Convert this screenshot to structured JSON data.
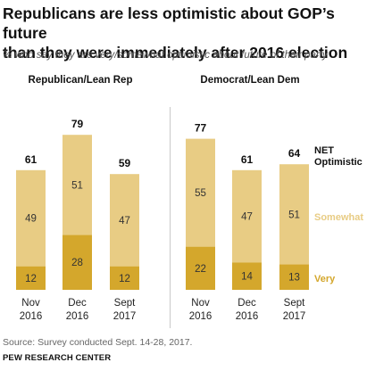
{
  "title_line1": "Republicans are less optimistic about GOP’s future",
  "title_line2": "than they were immediately after 2016 election",
  "subtitle": "% who say they are very/somewhat optimistic about future of their party",
  "source": "Source: Survey conducted Sept. 14-28, 2017.",
  "organization": "PEW RESEARCH CENTER",
  "colors": {
    "very": "#d4a72c",
    "somewhat": "#e8cc84"
  },
  "chart_data": [
    {
      "type": "bar",
      "stacked": true,
      "title": "Republican/Lean Rep",
      "categories": [
        [
          "Nov",
          "2016"
        ],
        [
          "Dec",
          "2016"
        ],
        [
          "Sept",
          "2017"
        ]
      ],
      "series": [
        {
          "name": "Very",
          "values": [
            12,
            28,
            12
          ]
        },
        {
          "name": "Somewhat",
          "values": [
            49,
            51,
            47
          ]
        }
      ],
      "totals": [
        61,
        79,
        59
      ]
    },
    {
      "type": "bar",
      "stacked": true,
      "title": "Democrat/Lean Dem",
      "categories": [
        [
          "Nov",
          "2016"
        ],
        [
          "Dec",
          "2016"
        ],
        [
          "Sept",
          "2017"
        ]
      ],
      "series": [
        {
          "name": "Very",
          "values": [
            22,
            14,
            13
          ]
        },
        {
          "name": "Somewhat",
          "values": [
            55,
            47,
            51
          ]
        }
      ],
      "totals": [
        77,
        61,
        64
      ],
      "legend": {
        "net_line1": "NET",
        "net_line2": "Optimistic",
        "somewhat": "Somewhat",
        "very": "Very"
      }
    }
  ]
}
